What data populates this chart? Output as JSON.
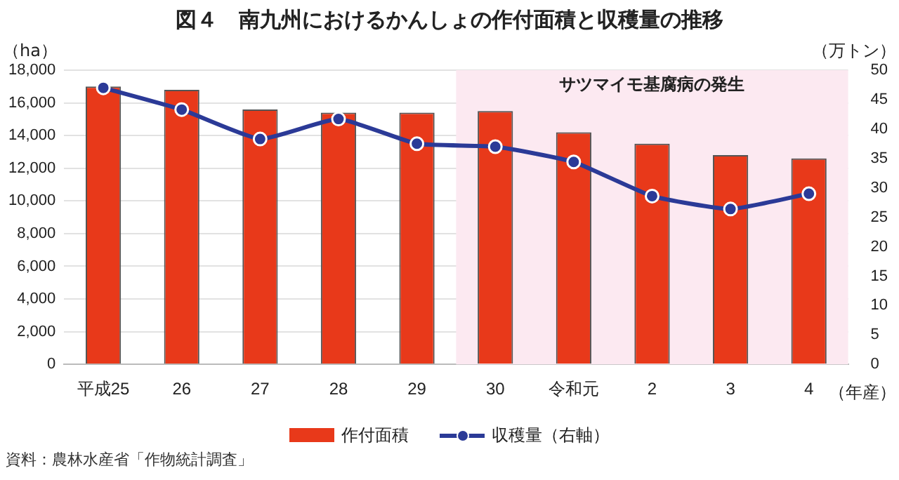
{
  "chart_data": {
    "type": "bar",
    "title": "図４　南九州におけるかんしょの作付面積と収穫量の推移",
    "ylabel": "（ha）",
    "y2label": "（万トン）",
    "xlabel": "（年産）",
    "categories": [
      "平成25",
      "26",
      "27",
      "28",
      "29",
      "30",
      "令和元",
      "2",
      "3",
      "4"
    ],
    "series": [
      {
        "name": "作付面積",
        "color": "#e8391a",
        "values": [
          17000,
          16800,
          15600,
          15400,
          15400,
          15500,
          14200,
          13500,
          12800,
          12600
        ]
      },
      {
        "name": "収穫量（右軸）",
        "type": "line",
        "axis": "y2",
        "color": "#2b3a97",
        "marker": "circle",
        "values": [
          47.0,
          43.3,
          38.3,
          41.7,
          37.5,
          37.0,
          34.4,
          28.6,
          26.4,
          29.0
        ]
      }
    ],
    "ylim": [
      0,
      18000
    ],
    "yticks": [
      0,
      {
        "value": 2000,
        "label": "2,000"
      },
      {
        "value": 4000,
        "label": "4,000"
      },
      {
        "value": 6000,
        "label": "6,000"
      },
      {
        "value": 8000,
        "label": "8,000"
      },
      {
        "value": 10000,
        "label": "10,000"
      },
      {
        "value": 12000,
        "label": "12,000"
      },
      {
        "value": 14000,
        "label": "14,000"
      },
      {
        "value": 16000,
        "label": "16,000"
      },
      {
        "value": 18000,
        "label": "18,000"
      }
    ],
    "y2lim": [
      0,
      50
    ],
    "y2ticks": [
      0,
      5,
      10,
      15,
      20,
      25,
      30,
      35,
      40,
      45,
      50
    ],
    "bands": [
      {
        "axis": "x",
        "from": "30",
        "to": "4",
        "label": "サツマイモ基腐病の発生",
        "color": "#fce9f1"
      }
    ],
    "grid": "y",
    "legend": "bottom",
    "annotations": [
      "資料：農林水産省「作物統計調査」"
    ]
  }
}
